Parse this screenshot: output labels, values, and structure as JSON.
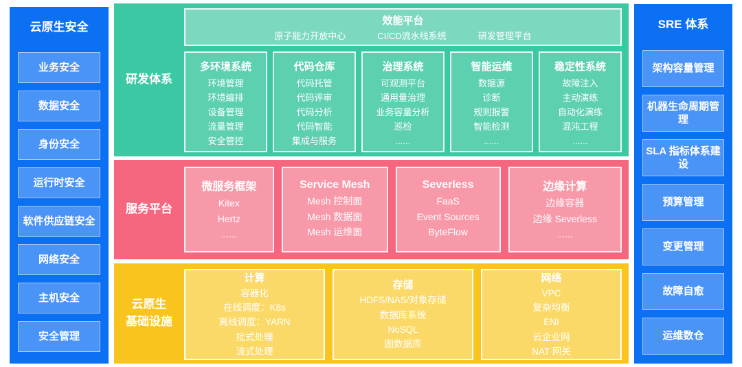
{
  "colors": {
    "panel_blue": "#0c70f2",
    "panel_item_blue": "#4a93f7",
    "band_green": "#3dc8a4",
    "green_header_box": "#7cd9c0",
    "green_col_box": "#5dd0b0",
    "band_red": "#f5677f",
    "red_box": "#f899a9",
    "band_yellow": "#f9c41d",
    "yellow_box": "#fbd968",
    "text": "#ffffff"
  },
  "left_panel": {
    "title": "云原生安全",
    "items": [
      "业务安全",
      "数据安全",
      "身份安全",
      "运行时安全",
      "软件供应链安全",
      "网络安全",
      "主机安全",
      "安全管理"
    ]
  },
  "rd": {
    "label": "研发体系",
    "platform": {
      "title": "效能平台",
      "items": [
        "原子能力开放中心",
        "CI/CD流水线系统",
        "研发管理平台"
      ]
    },
    "columns": [
      {
        "title": "多环境系统",
        "items": [
          "环境管理",
          "环境编排",
          "设备管理",
          "流量管理",
          "安全管控"
        ]
      },
      {
        "title": "代码仓库",
        "items": [
          "代码托管",
          "代码评审",
          "代码分析",
          "代码智能",
          "集成与服务"
        ]
      },
      {
        "title": "治理系统",
        "items": [
          "可观测平台",
          "通用量治理",
          "业务容量分析",
          "巡检",
          "......"
        ]
      },
      {
        "title": "智能运维",
        "items": [
          "数据源",
          "诊断",
          "规则报警",
          "智能检测",
          "......"
        ]
      },
      {
        "title": "稳定性系统",
        "items": [
          "故障注入",
          "主动演练",
          "自动化演练",
          "混沌工程",
          "......"
        ]
      }
    ]
  },
  "svc": {
    "label": "服务平台",
    "columns": [
      {
        "title": "微服务框架",
        "items": [
          "Kitex",
          "Hertz",
          "......"
        ]
      },
      {
        "title": "Service Mesh",
        "items": [
          "Mesh 控制面",
          "Mesh 数据面",
          "Mesh 运维面"
        ]
      },
      {
        "title": "Severless",
        "items": [
          "FaaS",
          "Event Sources",
          "ByteFlow"
        ]
      },
      {
        "title": "边缘计算",
        "items": [
          "边缘容器",
          "边缘 Severless",
          "......"
        ]
      }
    ]
  },
  "infra": {
    "label_line1": "云原生",
    "label_line2": "基础设施",
    "columns": [
      {
        "title": "计算",
        "items": [
          "容器化",
          "在线调度：K8s",
          "离线调度：YARN",
          "批式处理",
          "流式处理"
        ]
      },
      {
        "title": "存储",
        "items": [
          "HDFS/NAS/对象存储",
          "数据库系统",
          "NoSQL",
          "图数据库"
        ]
      },
      {
        "title": "网络",
        "items": [
          "VPC",
          "复杂均衡",
          "ENI",
          "云企业网",
          "NAT 网关"
        ]
      }
    ]
  },
  "right_panel": {
    "title": "SRE 体系",
    "items": [
      "架构容量管理",
      "机器生命周期管理",
      "SLA 指标体系建设",
      "预算管理",
      "变更管理",
      "故障自愈",
      "运维数仓"
    ]
  }
}
